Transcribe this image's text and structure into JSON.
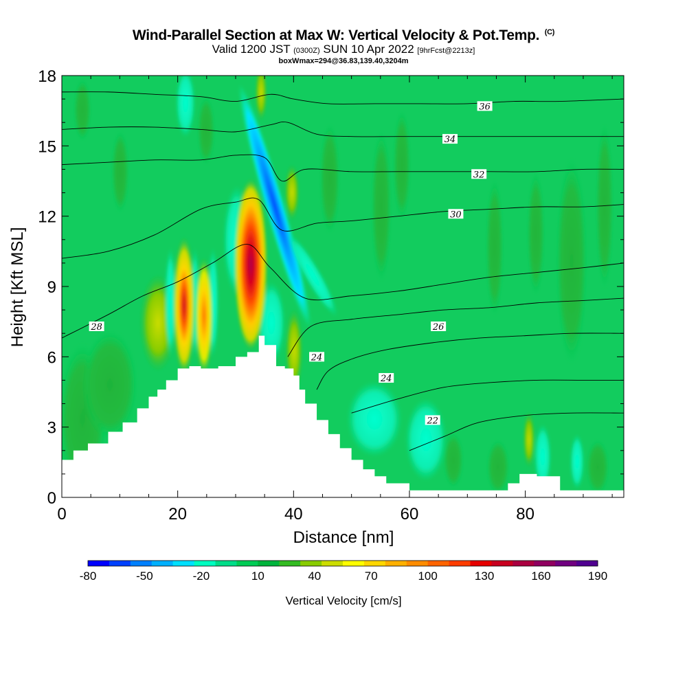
{
  "header": {
    "title": "Wind-Parallel Section at Max W: Vertical Velocity & Pot.Temp.",
    "copyright": "(C)",
    "valid_prefix": "Valid 1200 JST",
    "valid_utc": "(0300Z)",
    "valid_date": "SUN 10 Apr 2022",
    "forecast": "[9hrFcst@2213z]",
    "box_info": "boxWmax=294@36.83,139.40,3204m"
  },
  "chart_data": {
    "type": "heatmap",
    "xlabel": "Distance [nm]",
    "ylabel": "Height [Kft MSL]",
    "xlim": [
      0,
      97
    ],
    "ylim": [
      0,
      18
    ],
    "x_ticks": [
      0,
      20,
      40,
      60,
      80
    ],
    "y_ticks": [
      0,
      3,
      6,
      9,
      12,
      15,
      18
    ],
    "colorbar": {
      "label": "Vertical Velocity [cm/s]",
      "tick_labels": [
        "-80",
        "-50",
        "-20",
        "10",
        "40",
        "70",
        "100",
        "130",
        "160",
        "190"
      ],
      "colors": [
        "#0000ff",
        "#0040ff",
        "#0080ff",
        "#00b0ff",
        "#00e0ff",
        "#00ffc0",
        "#00dd88",
        "#00cc55",
        "#00b43c",
        "#33bb22",
        "#88cc00",
        "#ccdd00",
        "#ffff00",
        "#ffd700",
        "#ffb000",
        "#ff8c00",
        "#ff6400",
        "#ff3c00",
        "#e60000",
        "#c80020",
        "#aa0040",
        "#900060",
        "#700080",
        "#500090"
      ]
    },
    "terrain": {
      "x": [
        0,
        0,
        2,
        4.5,
        8,
        10.5,
        13,
        15,
        16.5,
        18,
        20,
        22,
        24,
        27,
        30,
        32,
        34,
        35,
        37,
        38.5,
        40,
        41,
        42,
        44,
        46,
        48,
        50,
        52,
        54,
        56,
        60,
        67,
        74,
        77,
        79,
        82,
        86,
        90,
        97,
        97
      ],
      "height_kft": [
        0,
        1.6,
        2,
        2.3,
        2.8,
        3.2,
        3.8,
        4.3,
        4.6,
        5,
        5.5,
        5.6,
        5.5,
        5.6,
        6,
        6.2,
        6.9,
        6.5,
        5.6,
        5.5,
        5.2,
        4.6,
        4,
        3.3,
        2.7,
        2.1,
        1.6,
        1.2,
        0.9,
        0.6,
        0.3,
        0.3,
        0.3,
        0.6,
        1,
        0.9,
        0.3,
        0.3,
        0.3,
        0
      ]
    },
    "theta_contours": [
      {
        "label": "22",
        "x": [
          60,
          66,
          72,
          80,
          88,
          97
        ],
        "y": [
          2.0,
          2.6,
          3.2,
          3.5,
          3.6,
          3.6
        ],
        "label_x": 64,
        "label_y": 3.3
      },
      {
        "label": "24",
        "x": [
          50,
          58,
          66,
          74,
          82,
          90,
          97
        ],
        "y": [
          3.6,
          4.2,
          4.7,
          4.9,
          5.0,
          5.0,
          5.0
        ],
        "label_x": 56,
        "label_y": 5.1
      },
      {
        "label": "24",
        "x": [
          44,
          46,
          50,
          56,
          64,
          72,
          80,
          88,
          97
        ],
        "y": [
          4.6,
          5.4,
          5.9,
          6.3,
          6.6,
          6.8,
          6.9,
          7.0,
          7.0
        ],
        "label_x": 44,
        "label_y": 6.0
      },
      {
        "label": "26",
        "x": [
          39,
          43,
          50,
          58,
          66,
          74,
          82,
          90,
          97
        ],
        "y": [
          6.0,
          7.3,
          7.6,
          7.8,
          8.0,
          8.1,
          8.3,
          8.4,
          8.5
        ],
        "label_x": 65,
        "label_y": 7.3
      },
      {
        "label": "28",
        "x": [
          0,
          8,
          14,
          20,
          26,
          32,
          36,
          42,
          50,
          58,
          66,
          74,
          82,
          90,
          97
        ],
        "y": [
          6.8,
          7.8,
          8.6,
          9.2,
          10.0,
          10.8,
          9.8,
          8.5,
          8.6,
          8.8,
          9.1,
          9.4,
          9.6,
          9.8,
          10.0
        ],
        "label_x": 6,
        "label_y": 7.3
      },
      {
        "label": "30",
        "x": [
          0,
          8,
          16,
          24,
          30,
          34,
          38,
          44,
          50,
          58,
          66,
          74,
          82,
          90,
          97
        ],
        "y": [
          10.2,
          10.5,
          11.2,
          12.3,
          12.6,
          12.7,
          11.4,
          11.7,
          11.8,
          12.0,
          12.2,
          12.3,
          12.4,
          12.4,
          12.5
        ],
        "label_x": 68,
        "label_y": 12.1
      },
      {
        "label": "32",
        "x": [
          0,
          8,
          16,
          24,
          30,
          35,
          38,
          42,
          50,
          58,
          66,
          74,
          82,
          90,
          97
        ],
        "y": [
          14.2,
          14.3,
          14.4,
          14.4,
          14.6,
          14.5,
          13.5,
          14.0,
          13.9,
          13.9,
          13.9,
          13.9,
          13.9,
          14.0,
          14.0
        ],
        "label_x": 72,
        "label_y": 13.8
      },
      {
        "label": "34",
        "x": [
          0,
          8,
          16,
          24,
          30,
          36,
          39,
          44,
          50,
          58,
          66,
          74,
          82,
          90,
          97
        ],
        "y": [
          15.7,
          15.8,
          15.8,
          15.7,
          15.6,
          15.9,
          16.0,
          15.5,
          15.4,
          15.4,
          15.4,
          15.4,
          15.4,
          15.4,
          15.4
        ],
        "label_x": 67,
        "label_y": 15.3
      },
      {
        "label": "36",
        "x": [
          0,
          8,
          16,
          24,
          30,
          36,
          40,
          46,
          54,
          62,
          70,
          78,
          86,
          97
        ],
        "y": [
          17.3,
          17.3,
          17.2,
          17.1,
          16.9,
          17.2,
          17.0,
          16.8,
          16.8,
          16.8,
          16.8,
          16.9,
          16.9,
          17.0
        ],
        "label_x": 73,
        "label_y": 16.7
      }
    ]
  }
}
